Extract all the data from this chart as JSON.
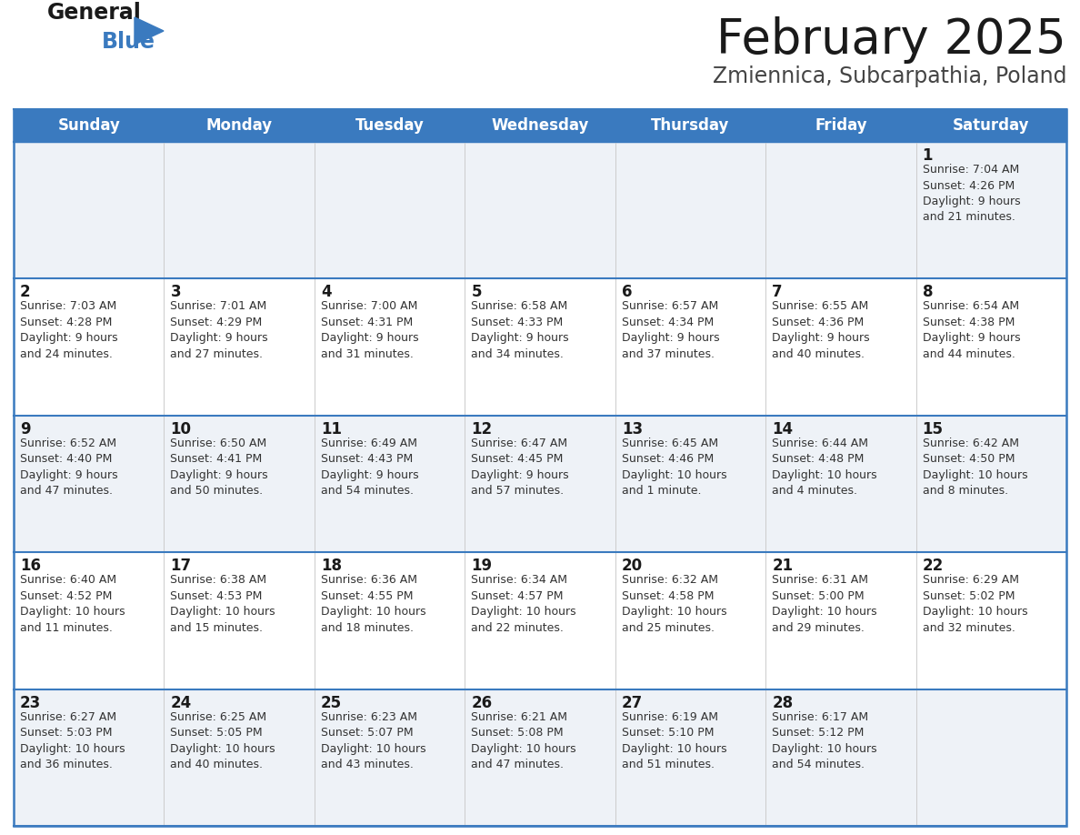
{
  "title": "February 2025",
  "subtitle": "Zmiennica, Subcarpathia, Poland",
  "header_bg": "#3a7abf",
  "header_text": "#ffffff",
  "row_bg_odd": "#eef2f7",
  "row_bg_even": "#ffffff",
  "border_color": "#3a7abf",
  "sep_color": "#aaaaaa",
  "day_headers": [
    "Sunday",
    "Monday",
    "Tuesday",
    "Wednesday",
    "Thursday",
    "Friday",
    "Saturday"
  ],
  "calendar": [
    [
      {
        "day": null,
        "info": null
      },
      {
        "day": null,
        "info": null
      },
      {
        "day": null,
        "info": null
      },
      {
        "day": null,
        "info": null
      },
      {
        "day": null,
        "info": null
      },
      {
        "day": null,
        "info": null
      },
      {
        "day": 1,
        "info": "Sunrise: 7:04 AM\nSunset: 4:26 PM\nDaylight: 9 hours\nand 21 minutes."
      }
    ],
    [
      {
        "day": 2,
        "info": "Sunrise: 7:03 AM\nSunset: 4:28 PM\nDaylight: 9 hours\nand 24 minutes."
      },
      {
        "day": 3,
        "info": "Sunrise: 7:01 AM\nSunset: 4:29 PM\nDaylight: 9 hours\nand 27 minutes."
      },
      {
        "day": 4,
        "info": "Sunrise: 7:00 AM\nSunset: 4:31 PM\nDaylight: 9 hours\nand 31 minutes."
      },
      {
        "day": 5,
        "info": "Sunrise: 6:58 AM\nSunset: 4:33 PM\nDaylight: 9 hours\nand 34 minutes."
      },
      {
        "day": 6,
        "info": "Sunrise: 6:57 AM\nSunset: 4:34 PM\nDaylight: 9 hours\nand 37 minutes."
      },
      {
        "day": 7,
        "info": "Sunrise: 6:55 AM\nSunset: 4:36 PM\nDaylight: 9 hours\nand 40 minutes."
      },
      {
        "day": 8,
        "info": "Sunrise: 6:54 AM\nSunset: 4:38 PM\nDaylight: 9 hours\nand 44 minutes."
      }
    ],
    [
      {
        "day": 9,
        "info": "Sunrise: 6:52 AM\nSunset: 4:40 PM\nDaylight: 9 hours\nand 47 minutes."
      },
      {
        "day": 10,
        "info": "Sunrise: 6:50 AM\nSunset: 4:41 PM\nDaylight: 9 hours\nand 50 minutes."
      },
      {
        "day": 11,
        "info": "Sunrise: 6:49 AM\nSunset: 4:43 PM\nDaylight: 9 hours\nand 54 minutes."
      },
      {
        "day": 12,
        "info": "Sunrise: 6:47 AM\nSunset: 4:45 PM\nDaylight: 9 hours\nand 57 minutes."
      },
      {
        "day": 13,
        "info": "Sunrise: 6:45 AM\nSunset: 4:46 PM\nDaylight: 10 hours\nand 1 minute."
      },
      {
        "day": 14,
        "info": "Sunrise: 6:44 AM\nSunset: 4:48 PM\nDaylight: 10 hours\nand 4 minutes."
      },
      {
        "day": 15,
        "info": "Sunrise: 6:42 AM\nSunset: 4:50 PM\nDaylight: 10 hours\nand 8 minutes."
      }
    ],
    [
      {
        "day": 16,
        "info": "Sunrise: 6:40 AM\nSunset: 4:52 PM\nDaylight: 10 hours\nand 11 minutes."
      },
      {
        "day": 17,
        "info": "Sunrise: 6:38 AM\nSunset: 4:53 PM\nDaylight: 10 hours\nand 15 minutes."
      },
      {
        "day": 18,
        "info": "Sunrise: 6:36 AM\nSunset: 4:55 PM\nDaylight: 10 hours\nand 18 minutes."
      },
      {
        "day": 19,
        "info": "Sunrise: 6:34 AM\nSunset: 4:57 PM\nDaylight: 10 hours\nand 22 minutes."
      },
      {
        "day": 20,
        "info": "Sunrise: 6:32 AM\nSunset: 4:58 PM\nDaylight: 10 hours\nand 25 minutes."
      },
      {
        "day": 21,
        "info": "Sunrise: 6:31 AM\nSunset: 5:00 PM\nDaylight: 10 hours\nand 29 minutes."
      },
      {
        "day": 22,
        "info": "Sunrise: 6:29 AM\nSunset: 5:02 PM\nDaylight: 10 hours\nand 32 minutes."
      }
    ],
    [
      {
        "day": 23,
        "info": "Sunrise: 6:27 AM\nSunset: 5:03 PM\nDaylight: 10 hours\nand 36 minutes."
      },
      {
        "day": 24,
        "info": "Sunrise: 6:25 AM\nSunset: 5:05 PM\nDaylight: 10 hours\nand 40 minutes."
      },
      {
        "day": 25,
        "info": "Sunrise: 6:23 AM\nSunset: 5:07 PM\nDaylight: 10 hours\nand 43 minutes."
      },
      {
        "day": 26,
        "info": "Sunrise: 6:21 AM\nSunset: 5:08 PM\nDaylight: 10 hours\nand 47 minutes."
      },
      {
        "day": 27,
        "info": "Sunrise: 6:19 AM\nSunset: 5:10 PM\nDaylight: 10 hours\nand 51 minutes."
      },
      {
        "day": 28,
        "info": "Sunrise: 6:17 AM\nSunset: 5:12 PM\nDaylight: 10 hours\nand 54 minutes."
      },
      {
        "day": null,
        "info": null
      }
    ]
  ],
  "title_fontsize": 38,
  "subtitle_fontsize": 17,
  "header_fontsize": 12,
  "day_num_fontsize": 12,
  "cell_text_fontsize": 9
}
